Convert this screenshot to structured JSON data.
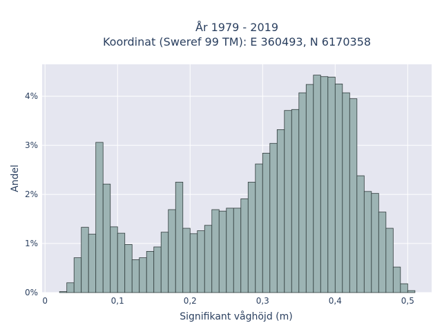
{
  "chart_data": {
    "type": "bar",
    "title_lines": [
      "År 1979 - 2019",
      "Koordinat (Sweref 99 TM): E 360493, N 6170358"
    ],
    "xlabel": "Signifikant våghöjd (m)",
    "ylabel": "Andel",
    "xlim": [
      -0.004,
      0.533
    ],
    "ylim": [
      0,
      4.65
    ],
    "bin_width": 0.01,
    "x_ticks": [
      {
        "value": 0,
        "label": "0"
      },
      {
        "value": 0.1,
        "label": "0,1"
      },
      {
        "value": 0.2,
        "label": "0,2"
      },
      {
        "value": 0.3,
        "label": "0,3"
      },
      {
        "value": 0.4,
        "label": "0,4"
      },
      {
        "value": 0.5,
        "label": "0,5"
      }
    ],
    "y_ticks": [
      {
        "value": 0,
        "label": "0%"
      },
      {
        "value": 1,
        "label": "1%"
      },
      {
        "value": 2,
        "label": "2%"
      },
      {
        "value": 3,
        "label": "3%"
      },
      {
        "value": 4,
        "label": "4%"
      }
    ],
    "bins_start": [
      0.02,
      0.03,
      0.04,
      0.05,
      0.06,
      0.07,
      0.08,
      0.09,
      0.1,
      0.11,
      0.12,
      0.13,
      0.14,
      0.15,
      0.16,
      0.17,
      0.18,
      0.19,
      0.2,
      0.21,
      0.22,
      0.23,
      0.24,
      0.25,
      0.26,
      0.27,
      0.28,
      0.29,
      0.3,
      0.31,
      0.32,
      0.33,
      0.34,
      0.35,
      0.36,
      0.37,
      0.38,
      0.39,
      0.4,
      0.41,
      0.42,
      0.43,
      0.44,
      0.45,
      0.46,
      0.47,
      0.48,
      0.49,
      0.5
    ],
    "values": [
      0.02,
      0.2,
      0.71,
      1.33,
      1.19,
      3.06,
      2.21,
      1.34,
      1.21,
      0.98,
      0.67,
      0.71,
      0.84,
      0.93,
      1.23,
      1.69,
      2.25,
      1.31,
      1.2,
      1.26,
      1.37,
      1.69,
      1.66,
      1.72,
      1.72,
      1.91,
      2.25,
      2.62,
      2.84,
      3.04,
      3.32,
      3.71,
      3.73,
      4.07,
      4.24,
      4.43,
      4.4,
      4.39,
      4.25,
      4.07,
      3.95,
      2.38,
      2.06,
      2.02,
      1.64,
      1.31,
      0.52,
      0.18,
      0.04
    ],
    "colors": {
      "plot_bg": "#e5e6f0",
      "grid": "#ffffff",
      "bar_fill": "#9db4b4",
      "bar_stroke": "#2f3b3b",
      "text": "#2a3f5f"
    }
  }
}
